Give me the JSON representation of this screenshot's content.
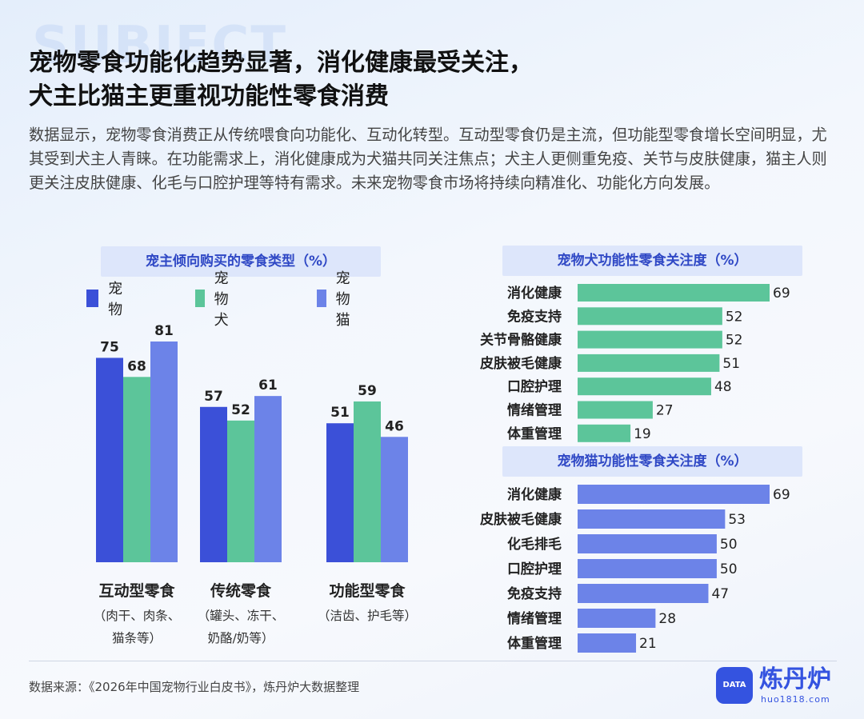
{
  "header": {
    "bg_word": "SUBJECT",
    "title_line1": "宠物零食功能化趋势显著，消化健康最受关注，",
    "title_line2": "犬主比猫主更重视功能性零食消费",
    "intro": "数据显示，宠物零食消费正从传统喂食向功能化、互动化转型。互动型零食仍是主流，但功能型零食增长空间明显，尤其受到犬主人青睐。在功能需求上，消化健康成为犬猫共同关注焦点；犬主人更侧重免疫、关节与皮肤健康，猫主人则更关注皮肤健康、化毛与口腔护理等特有需求。未来宠物零食市场将持续向精准化、功能化方向发展。"
  },
  "colors": {
    "pet": "#3b50d8",
    "dog": "#5cc59a",
    "cat": "#6c83e8",
    "accent_text": "#2f48c5"
  },
  "chart_data": [
    {
      "type": "bar",
      "title": "宠主倾向购买的零食类型（%）",
      "categories": [
        "互动型零食",
        "传统零食",
        "功能型零食"
      ],
      "category_notes": [
        [
          "（肉干、肉条、",
          "猫条等）"
        ],
        [
          "（罐头、冻干、",
          "奶酪/奶等）"
        ],
        [
          "（洁齿、护毛等）"
        ]
      ],
      "series": [
        {
          "name": "宠物",
          "values": [
            75,
            57,
            51
          ]
        },
        {
          "name": "宠物犬",
          "values": [
            68,
            52,
            59
          ]
        },
        {
          "name": "宠物猫",
          "values": [
            81,
            61,
            46
          ]
        }
      ],
      "ylim": [
        0,
        81
      ],
      "legend": "top"
    },
    {
      "type": "bar",
      "orientation": "horizontal",
      "title": "宠物犬功能性零食关注度（%）",
      "categories": [
        "消化健康",
        "免疫支持",
        "关节骨骼健康",
        "皮肤被毛健康",
        "口腔护理",
        "情绪管理",
        "体重管理"
      ],
      "values": [
        69,
        52,
        52,
        51,
        48,
        27,
        19
      ],
      "xlim": [
        0,
        69
      ]
    },
    {
      "type": "bar",
      "orientation": "horizontal",
      "title": "宠物猫功能性零食关注度（%）",
      "categories": [
        "消化健康",
        "皮肤被毛健康",
        "化毛排毛",
        "口腔护理",
        "免疫支持",
        "情绪管理",
        "体重管理"
      ],
      "values": [
        69,
        53,
        50,
        50,
        47,
        28,
        21
      ],
      "xlim": [
        0,
        69
      ]
    }
  ],
  "footer": {
    "source": "数据来源：《2026年中国宠物行业白皮书》，炼丹炉大数据整理",
    "logo_badge": "DATA",
    "logo_name": "炼丹炉",
    "logo_url": "huo1818.com"
  }
}
